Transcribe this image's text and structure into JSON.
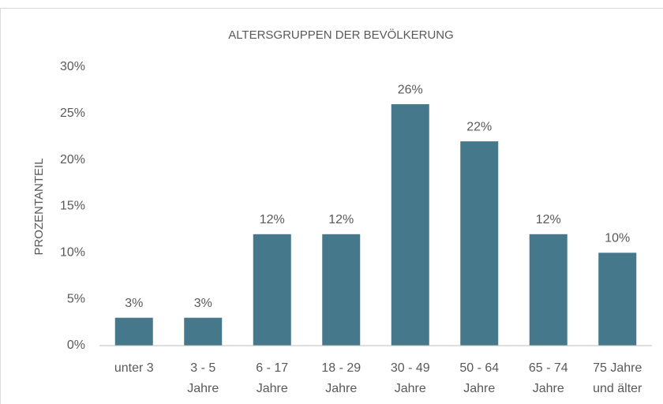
{
  "chart_data": {
    "type": "bar",
    "title": "ALTERSGRUPPEN DER BEVÖLKERUNG",
    "y_label": "PROZENTANTEIL",
    "categories": [
      "unter 3",
      "3 - 5\nJahre",
      "6 - 17\nJahre",
      "18 - 29\nJahre",
      "30 - 49\nJahre",
      "50 - 64\nJahre",
      "65 - 74\nJahre",
      "75 Jahre\nund älter"
    ],
    "values": [
      3,
      3,
      12,
      12,
      26,
      22,
      12,
      10
    ],
    "value_labels": [
      "3%",
      "3%",
      "12%",
      "12%",
      "26%",
      "22%",
      "12%",
      "10%"
    ],
    "color": "#45788a",
    "ylim": [
      0,
      30
    ],
    "yticks": [
      {
        "value": 0,
        "label": "0%"
      },
      {
        "value": 5,
        "label": "5%"
      },
      {
        "value": 10,
        "label": "10%"
      },
      {
        "value": 15,
        "label": "15%"
      },
      {
        "value": 20,
        "label": "20%"
      },
      {
        "value": 25,
        "label": "25%"
      },
      {
        "value": 30,
        "label": "30%"
      }
    ],
    "grid": false
  }
}
